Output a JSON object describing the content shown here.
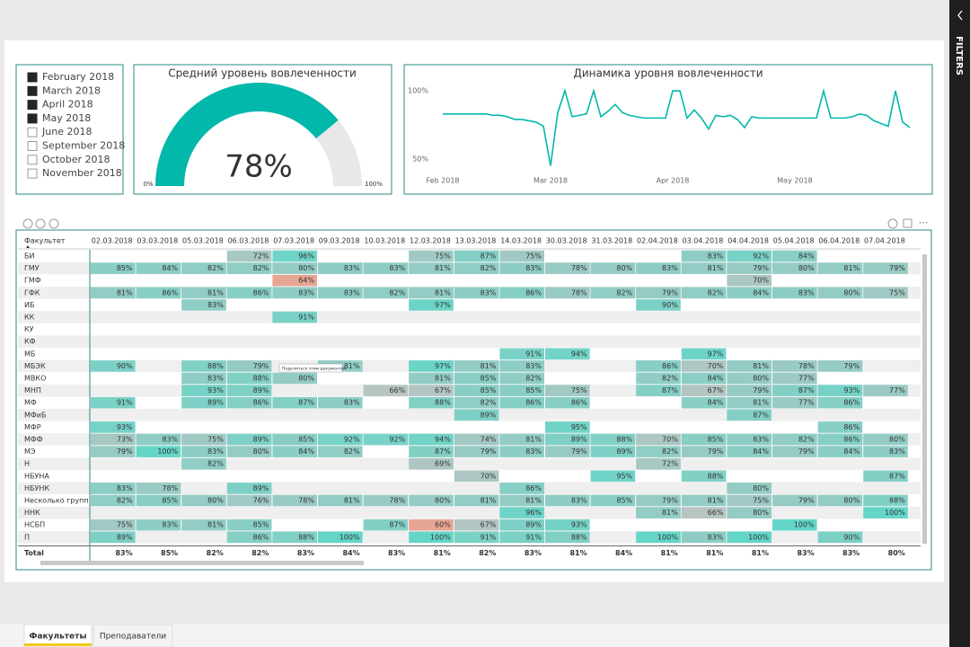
{
  "filters_label": "FILTERS",
  "slicer": {
    "items": [
      {
        "label": "February 2018",
        "selected": true
      },
      {
        "label": "March 2018",
        "selected": true
      },
      {
        "label": "April 2018",
        "selected": true
      },
      {
        "label": "May 2018",
        "selected": true
      },
      {
        "label": "June 2018",
        "selected": false
      },
      {
        "label": "September 2018",
        "selected": false
      },
      {
        "label": "October 2018",
        "selected": false
      },
      {
        "label": "November 2018",
        "selected": false
      }
    ]
  },
  "chart_data": [
    {
      "type": "gauge",
      "title": "Средний уровень вовлеченности",
      "value": 78,
      "value_label": "78%",
      "min": {
        "value": 0,
        "label": "0%"
      },
      "max": {
        "value": 100,
        "label": "100%"
      },
      "color": "#01b8aa",
      "track_color": "#e8e8e8"
    },
    {
      "type": "line",
      "title": "Динамика уровня вовлеченности",
      "color": "#01b8aa",
      "categories": [
        "Feb 2018",
        null,
        null,
        null,
        null,
        null,
        null,
        null,
        null,
        null,
        null,
        null,
        null,
        null,
        null,
        "Mar 2018",
        null,
        null,
        null,
        null,
        null,
        null,
        null,
        null,
        null,
        null,
        null,
        null,
        null,
        null,
        null,
        null,
        "Apr 2018",
        null,
        null,
        null,
        null,
        null,
        null,
        null,
        null,
        null,
        null,
        null,
        null,
        null,
        null,
        null,
        null,
        "May 2018",
        null,
        null,
        null,
        null,
        null,
        null,
        null,
        null,
        null,
        null,
        null,
        null,
        null,
        null,
        null,
        null
      ],
      "values": [
        83,
        83,
        83,
        83,
        83,
        83,
        83,
        82,
        82,
        81,
        79,
        79,
        78,
        77,
        74,
        45,
        84,
        100,
        81,
        82,
        83,
        100,
        81,
        85,
        90,
        84,
        82,
        81,
        80,
        80,
        80,
        80,
        100,
        100,
        80,
        86,
        80,
        72,
        82,
        81,
        82,
        79,
        73,
        81,
        80,
        80,
        80,
        80,
        80,
        80,
        80,
        80,
        80,
        100,
        80,
        80,
        80,
        81,
        83,
        82,
        78,
        76,
        74,
        100,
        77,
        73
      ],
      "ylim": [
        42,
        104
      ],
      "yticks": [
        {
          "value": 100,
          "label": "100%"
        },
        {
          "value": 50,
          "label": "50%"
        }
      ]
    }
  ],
  "table": {
    "header": [
      "Факультет",
      "02.03.2018",
      "03.03.2018",
      "05.03.2018",
      "06.03.2018",
      "07.03.2018",
      "09.03.2018",
      "10.03.2018",
      "12.03.2018",
      "13.03.2018",
      "14.03.2018",
      "30.03.2018",
      "31.03.2018",
      "02.04.2018",
      "03.04.2018",
      "04.04.2018",
      "05.04.2018",
      "06.04.2018",
      "07.04.2018"
    ],
    "rows": [
      [
        "БИ",
        null,
        null,
        null,
        "72%",
        "96%",
        null,
        null,
        "75%",
        "87%",
        "75%",
        null,
        null,
        null,
        "83%",
        "92%",
        "84%",
        null,
        null
      ],
      [
        "ГМУ",
        "85%",
        "84%",
        "82%",
        "82%",
        "80%",
        "83%",
        "83%",
        "81%",
        "82%",
        "83%",
        "78%",
        "80%",
        "83%",
        "81%",
        "79%",
        "80%",
        "81%",
        "79%"
      ],
      [
        "ГМФ",
        null,
        null,
        null,
        null,
        "64%",
        null,
        null,
        null,
        null,
        null,
        null,
        null,
        null,
        null,
        "70%",
        null,
        null,
        null
      ],
      [
        "ГФК",
        "81%",
        "86%",
        "81%",
        "86%",
        "83%",
        "83%",
        "82%",
        "81%",
        "83%",
        "86%",
        "78%",
        "82%",
        "79%",
        "82%",
        "84%",
        "83%",
        "80%",
        "75%"
      ],
      [
        "ИБ",
        null,
        null,
        "83%",
        null,
        null,
        null,
        null,
        "97%",
        null,
        null,
        null,
        null,
        "90%",
        null,
        null,
        null,
        null,
        null
      ],
      [
        "КК",
        null,
        null,
        null,
        null,
        "91%",
        null,
        null,
        null,
        null,
        null,
        null,
        null,
        null,
        null,
        null,
        null,
        null,
        null
      ],
      [
        "КУ",
        null,
        null,
        null,
        null,
        null,
        null,
        null,
        null,
        null,
        null,
        null,
        null,
        null,
        null,
        null,
        null,
        null,
        null
      ],
      [
        "КФ",
        null,
        null,
        null,
        null,
        null,
        null,
        null,
        null,
        null,
        null,
        null,
        null,
        null,
        null,
        null,
        null,
        null,
        null
      ],
      [
        "МБ",
        null,
        null,
        null,
        null,
        null,
        null,
        null,
        null,
        null,
        "91%",
        "94%",
        null,
        null,
        "97%",
        null,
        null,
        null,
        null
      ],
      [
        "МБЭК",
        "90%",
        null,
        "88%",
        "79%",
        null,
        "81%",
        null,
        "97%",
        "81%",
        "83%",
        null,
        null,
        "86%",
        "70%",
        "81%",
        "78%",
        "79%",
        null
      ],
      [
        "МВКО",
        null,
        null,
        "83%",
        "88%",
        "80%",
        null,
        null,
        "81%",
        "85%",
        "82%",
        null,
        null,
        "82%",
        "84%",
        "80%",
        "77%",
        null,
        null
      ],
      [
        "МНП",
        null,
        null,
        "93%",
        "89%",
        null,
        null,
        "66%",
        "67%",
        "85%",
        "85%",
        "75%",
        null,
        "87%",
        "67%",
        "79%",
        "87%",
        "93%",
        "77%"
      ],
      [
        "МФ",
        "91%",
        null,
        "89%",
        "86%",
        "87%",
        "83%",
        null,
        "88%",
        "82%",
        "86%",
        "86%",
        null,
        null,
        "84%",
        "81%",
        "77%",
        "86%",
        null
      ],
      [
        "МФиБ",
        null,
        null,
        null,
        null,
        null,
        null,
        null,
        null,
        "89%",
        null,
        null,
        null,
        null,
        null,
        "87%",
        null,
        null,
        null
      ],
      [
        "МФР",
        "93%",
        null,
        null,
        null,
        null,
        null,
        null,
        null,
        null,
        null,
        "95%",
        null,
        null,
        null,
        null,
        null,
        "86%",
        null
      ],
      [
        "МФФ",
        "73%",
        "83%",
        "75%",
        "89%",
        "85%",
        "92%",
        "92%",
        "94%",
        "74%",
        "81%",
        "89%",
        "88%",
        "70%",
        "85%",
        "83%",
        "82%",
        "86%",
        "80%"
      ],
      [
        "МЭ",
        "79%",
        "100%",
        "83%",
        "80%",
        "84%",
        "82%",
        null,
        "87%",
        "79%",
        "83%",
        "79%",
        "89%",
        "82%",
        "79%",
        "84%",
        "79%",
        "84%",
        "83%"
      ],
      [
        "Н",
        null,
        null,
        "82%",
        null,
        null,
        null,
        null,
        "69%",
        null,
        null,
        null,
        null,
        "72%",
        null,
        null,
        null,
        null,
        null
      ],
      [
        "НБУНА",
        null,
        null,
        null,
        null,
        null,
        null,
        null,
        null,
        "70%",
        null,
        null,
        "95%",
        null,
        "88%",
        null,
        null,
        null,
        "87%"
      ],
      [
        "НБУНК",
        "83%",
        "78%",
        null,
        "89%",
        null,
        null,
        null,
        null,
        null,
        "86%",
        null,
        null,
        null,
        null,
        "80%",
        null,
        null,
        null
      ],
      [
        "Несколько групп",
        "82%",
        "85%",
        "80%",
        "76%",
        "78%",
        "81%",
        "78%",
        "80%",
        "81%",
        "81%",
        "83%",
        "85%",
        "79%",
        "81%",
        "75%",
        "79%",
        "80%",
        "88%"
      ],
      [
        "ННК",
        null,
        null,
        null,
        null,
        null,
        null,
        null,
        null,
        null,
        "96%",
        null,
        null,
        "81%",
        "66%",
        "80%",
        null,
        null,
        "100%"
      ],
      [
        "НСБП",
        "75%",
        "83%",
        "81%",
        "85%",
        null,
        null,
        "87%",
        "60%",
        "67%",
        "89%",
        "93%",
        null,
        null,
        null,
        null,
        "100%",
        null,
        null
      ],
      [
        "П",
        "89%",
        null,
        null,
        "86%",
        "88%",
        "100%",
        null,
        "100%",
        "91%",
        "91%",
        "88%",
        null,
        "100%",
        "83%",
        "100%",
        null,
        "90%",
        null
      ]
    ],
    "total": [
      "Total",
      "83%",
      "85%",
      "82%",
      "82%",
      "83%",
      "84%",
      "83%",
      "81%",
      "82%",
      "83%",
      "81%",
      "84%",
      "81%",
      "81%",
      "81%",
      "83%",
      "83%",
      "80%"
    ]
  },
  "tooltip": "Поделиться этим документом",
  "tabs": [
    {
      "label": "Факультеты",
      "active": true
    },
    {
      "label": "Преподаватели",
      "active": false
    }
  ]
}
